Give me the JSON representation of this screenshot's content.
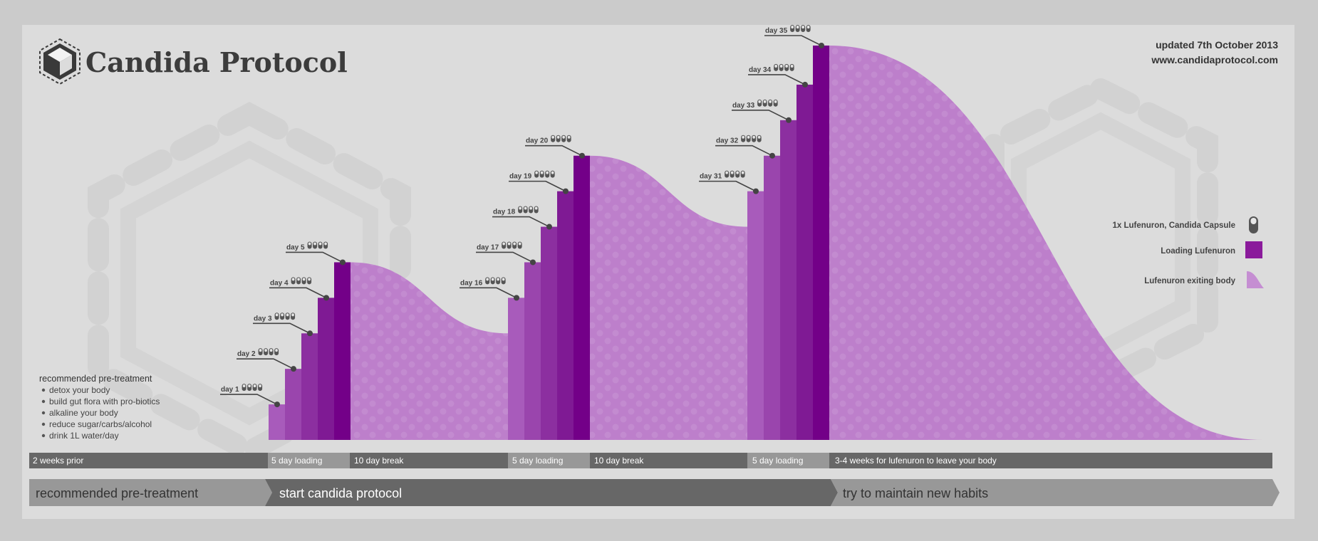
{
  "header": {
    "title": "Candida Protocol",
    "updated": "updated 7th October 2013",
    "website": "www.candidaprotocol.com"
  },
  "legend": {
    "placement": "right",
    "items": [
      {
        "label": "1x Lufenuron, Candida Capsule",
        "icon": "capsule-icon",
        "color": "#555555"
      },
      {
        "label": "Loading Lufenuron",
        "icon": "square-swatch-icon",
        "color": "#8a1a9b"
      },
      {
        "label": "Lufenuron exiting body",
        "icon": "curve-swatch-icon",
        "color": "#c58ed2"
      }
    ]
  },
  "pre_treatment": {
    "heading": "recommended pre-treatment",
    "items": [
      "detox your body",
      "build gut flora with pro-biotics",
      "alkaline your body",
      "reduce sugar/carbs/alcohol",
      "drink 1L water/day"
    ]
  },
  "timeline": [
    {
      "label": "2 weeks prior",
      "tone": "dark"
    },
    {
      "label": "5 day loading",
      "tone": "light"
    },
    {
      "label": "10 day break",
      "tone": "dark"
    },
    {
      "label": "5 day loading",
      "tone": "light"
    },
    {
      "label": "10 day break",
      "tone": "dark"
    },
    {
      "label": "5 day loading",
      "tone": "light"
    },
    {
      "label": "3-4 weeks for lufenuron to leave your body",
      "tone": "dark"
    }
  ],
  "phases": [
    {
      "label": "recommended pre-treatment",
      "tone": "light"
    },
    {
      "label": "start candida protocol",
      "tone": "dark"
    },
    {
      "label": "try to maintain new habits",
      "tone": "light"
    }
  ],
  "colors": {
    "bar_shades": [
      "#a85bbb",
      "#9a45ad",
      "#8c2fa0",
      "#7f1a94",
      "#730088"
    ],
    "decay_fill": "#bd7fcb",
    "timeline_dark": "#676767",
    "timeline_light": "#989898"
  },
  "chart_data": {
    "type": "bar",
    "title": "",
    "xlabel": "",
    "ylabel": "",
    "y_unit": "relative lufenuron level",
    "grid": false,
    "ylim": [
      0,
      12
    ],
    "capsules_per_day": 4,
    "bars": [
      {
        "day": 1,
        "label": "day 1",
        "value": 1.0
      },
      {
        "day": 2,
        "label": "day 2",
        "value": 2.0
      },
      {
        "day": 3,
        "label": "day 3",
        "value": 3.0
      },
      {
        "day": 4,
        "label": "day 4",
        "value": 4.0
      },
      {
        "day": 5,
        "label": "day 5",
        "value": 5.0
      },
      {
        "day": 16,
        "label": "day 16",
        "value": 4.0
      },
      {
        "day": 17,
        "label": "day 17",
        "value": 5.0
      },
      {
        "day": 18,
        "label": "day 18",
        "value": 6.0
      },
      {
        "day": 19,
        "label": "day 19",
        "value": 7.0
      },
      {
        "day": 20,
        "label": "day 20",
        "value": 8.0
      },
      {
        "day": 31,
        "label": "day 31",
        "value": 7.0
      },
      {
        "day": 32,
        "label": "day 32",
        "value": 8.0
      },
      {
        "day": 33,
        "label": "day 33",
        "value": 9.0
      },
      {
        "day": 34,
        "label": "day 34",
        "value": 10.0
      },
      {
        "day": 35,
        "label": "day 35",
        "value": 11.1
      }
    ],
    "decay_series": [
      {
        "name": "Lufenuron exiting body",
        "from_day": 5,
        "to_day": 15,
        "start": 5.0,
        "end": 3.0
      },
      {
        "name": "Lufenuron exiting body",
        "from_day": 20,
        "to_day": 30,
        "start": 8.0,
        "end": 6.0
      },
      {
        "name": "Lufenuron exiting body",
        "from_day": 35,
        "to_day": "3-4 weeks",
        "start": 11.1,
        "end": 0
      }
    ]
  }
}
